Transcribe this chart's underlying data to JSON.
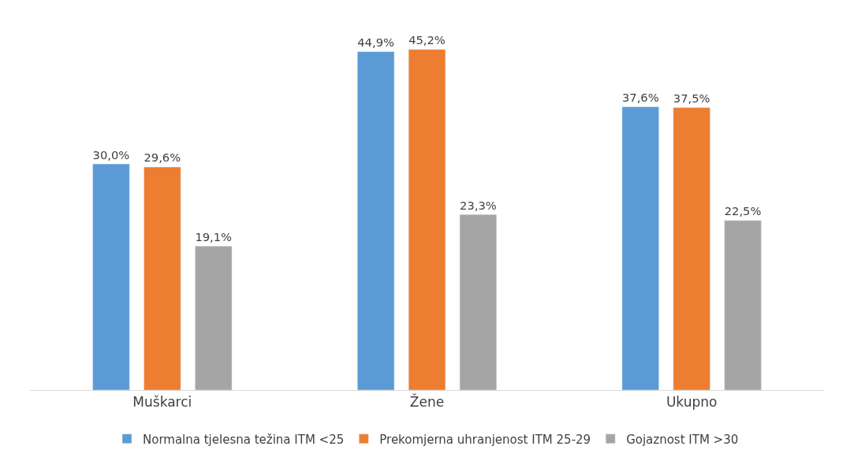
{
  "chart_data": {
    "type": "bar",
    "categories": [
      "Muškarci",
      "Žene",
      "Ukupno"
    ],
    "series": [
      {
        "name": "Normalna tjelesna težina ITM <25",
        "color": "#5b9bd5",
        "values": [
          30.0,
          44.9,
          37.6
        ],
        "value_labels": [
          "30,0%",
          "44,9%",
          "37,6%"
        ]
      },
      {
        "name": "Prekomjerna uhranjenost ITM 25-29",
        "color": "#ed7d31",
        "values": [
          29.6,
          45.2,
          37.5
        ],
        "value_labels": [
          "29,6%",
          "45,2%",
          "37,5%"
        ]
      },
      {
        "name": "Gojaznost ITM >30",
        "color": "#a5a5a5",
        "values": [
          19.1,
          23.3,
          22.5
        ],
        "value_labels": [
          "19,1%",
          "23,3%",
          "22,5%"
        ]
      }
    ],
    "legend": "bottom",
    "tick_labels": "x"
  }
}
